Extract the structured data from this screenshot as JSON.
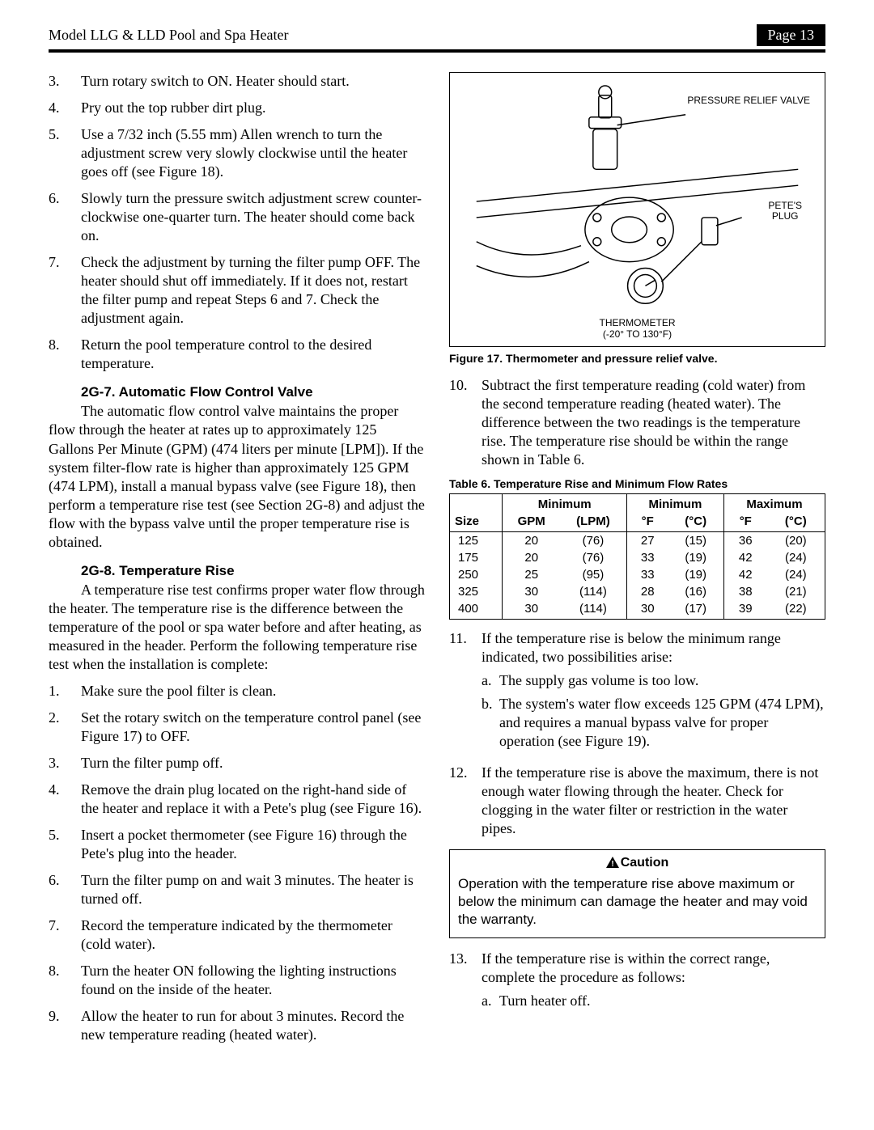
{
  "header": {
    "title": "Model LLG & LLD Pool and Spa Heater",
    "page_label": "Page 13"
  },
  "left": {
    "list1": [
      {
        "n": "3.",
        "t": "Turn rotary switch to ON. Heater should start."
      },
      {
        "n": "4.",
        "t": "Pry out the top rubber dirt plug."
      },
      {
        "n": "5.",
        "t": "Use a 7/32 inch (5.55 mm) Allen wrench to turn the adjustment screw very slowly clockwise until the heater goes off (see Figure 18)."
      },
      {
        "n": "6.",
        "t": "Slowly turn the pressure switch adjustment screw counter-clockwise one-quarter turn. The heater should come back on."
      },
      {
        "n": "7.",
        "t": "Check the adjustment by turning the filter pump OFF. The heater should shut off immediately. If it does not, restart the filter pump and repeat Steps 6 and 7. Check the adjustment again."
      },
      {
        "n": "8.",
        "t": "Return the pool temperature control to the desired temperature."
      }
    ],
    "sec1_head": "2G-7. Automatic Flow Control Valve",
    "sec1_para": "The automatic flow control valve maintains the proper flow through the heater at rates up to approximately 125 Gallons Per Minute (GPM) (474 liters per minute [LPM]). If the system filter-flow rate is higher than approximately 125 GPM (474 LPM), install a manual bypass valve (see Figure 18), then perform a temperature rise test (see Section 2G-8) and adjust the flow with the bypass valve until the proper temperature rise is obtained.",
    "sec2_head": "2G-8. Temperature Rise",
    "sec2_para": "A temperature rise test confirms proper water flow through the heater. The temperature rise is the difference between the temperature of the pool or spa water before and after heating, as measured in the header. Perform the following temperature rise test when the installation is complete:",
    "list2": [
      {
        "n": "1.",
        "t": "Make sure the pool filter is clean."
      },
      {
        "n": "2.",
        "t": "Set the rotary switch on the temperature control panel (see Figure 17) to OFF."
      },
      {
        "n": "3.",
        "t": "Turn the filter pump off."
      },
      {
        "n": "4.",
        "t": "Remove the drain plug located on the right-hand side of the heater and replace it with a Pete's plug (see Figure 16)."
      },
      {
        "n": "5.",
        "t": "Insert a pocket thermometer (see Figure 16) through the Pete's plug into the header."
      },
      {
        "n": "6.",
        "t": "Turn the filter pump on and wait 3 minutes. The heater is turned off."
      },
      {
        "n": "7.",
        "t": "Record the temperature indicated by the thermometer (cold water)."
      },
      {
        "n": "8.",
        "t": "Turn the heater ON following the lighting instructions found on the inside of the heater."
      },
      {
        "n": "9.",
        "t": "Allow the heater to run for about 3 minutes. Record the new temperature reading (heated water)."
      }
    ]
  },
  "right": {
    "figure": {
      "label_prv": "PRESSURE RELIEF VALVE",
      "label_plug": "PETE'S\nPLUG",
      "label_therm": "THERMOMETER",
      "label_range": "(-20° TO 130°F)",
      "caption": "Figure 17. Thermometer and pressure relief valve."
    },
    "list": [
      {
        "n": "10.",
        "t": "Subtract the first temperature reading (cold water) from the second temperature reading (heated water). The difference between the two readings is the temperature rise. The temperature rise should be within the range shown in Table 6."
      }
    ],
    "table": {
      "caption": "Table 6.  Temperature Rise and Minimum Flow Rates",
      "group_headers": [
        "",
        "Minimum",
        "Minimum",
        "Maximum"
      ],
      "unit_headers": [
        "Size",
        "GPM",
        "(LPM)",
        "°F",
        "(°C)",
        "°F",
        "(°C)"
      ],
      "rows": [
        [
          "125",
          "20",
          "(76)",
          "27",
          "(15)",
          "36",
          "(20)"
        ],
        [
          "175",
          "20",
          "(76)",
          "33",
          "(19)",
          "42",
          "(24)"
        ],
        [
          "250",
          "25",
          "(95)",
          "33",
          "(19)",
          "42",
          "(24)"
        ],
        [
          "325",
          "30",
          "(114)",
          "28",
          "(16)",
          "38",
          "(21)"
        ],
        [
          "400",
          "30",
          "(114)",
          "30",
          "(17)",
          "39",
          "(22)"
        ]
      ]
    },
    "list2": [
      {
        "n": "11.",
        "t": "If the temperature rise is below the minimum range indicated, two possibilities arise:",
        "sub": [
          {
            "m": "a.",
            "t": "The supply gas volume is too low."
          },
          {
            "m": "b.",
            "t": "The system's water flow exceeds 125 GPM (474 LPM), and requires a manual bypass valve for proper operation (see Figure 19)."
          }
        ]
      },
      {
        "n": "12.",
        "t": "If the temperature rise is above the maximum, there is not enough water flowing through the heater. Check for clogging in the water filter or restriction in the water pipes."
      }
    ],
    "caution": {
      "head": "Caution",
      "body": "Operation with the temperature rise above maximum or below the minimum can damage the heater and may void the warranty."
    },
    "list3": [
      {
        "n": "13.",
        "t": "If the temperature rise is within the correct range, complete the procedure as follows:",
        "sub": [
          {
            "m": "a.",
            "t": "Turn heater off."
          }
        ]
      }
    ]
  }
}
